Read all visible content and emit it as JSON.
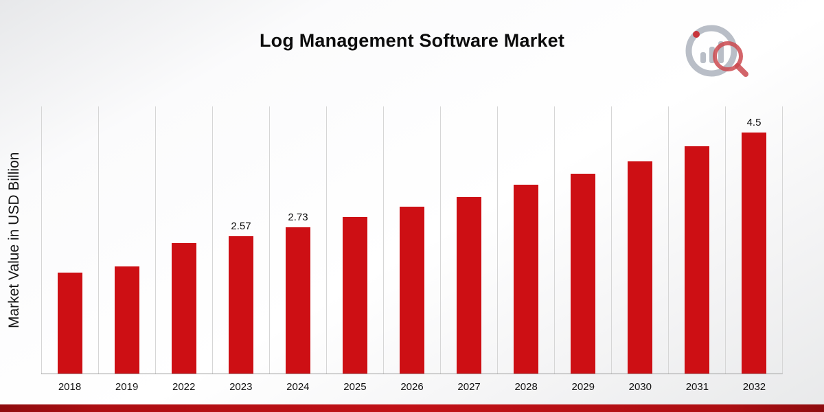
{
  "page": {
    "title": "Log Management Software Market"
  },
  "colors": {
    "bar": "#cd0f14",
    "grid": "#d6d6d6",
    "axis": "#9b9b9b",
    "footer": "#ad0e12",
    "logo_gray": "#b9bec7",
    "logo_red": "#c8353b"
  },
  "chart_data": {
    "type": "bar",
    "title": "Log Management Software Market",
    "xlabel": "",
    "ylabel": "Market Value in USD Billion",
    "categories": [
      "2018",
      "2019",
      "2022",
      "2023",
      "2024",
      "2025",
      "2026",
      "2027",
      "2028",
      "2029",
      "2030",
      "2031",
      "2032"
    ],
    "values": [
      1.89,
      2.0,
      2.44,
      2.57,
      2.73,
      2.92,
      3.11,
      3.3,
      3.53,
      3.73,
      3.96,
      4.25,
      4.5
    ],
    "labels": {
      "2023": "2.57",
      "2024": "2.73",
      "2032": "4.5"
    },
    "bar_color": "#cd0f14",
    "ylim": [
      0,
      5
    ],
    "grid": "vertical",
    "legend": "none"
  }
}
